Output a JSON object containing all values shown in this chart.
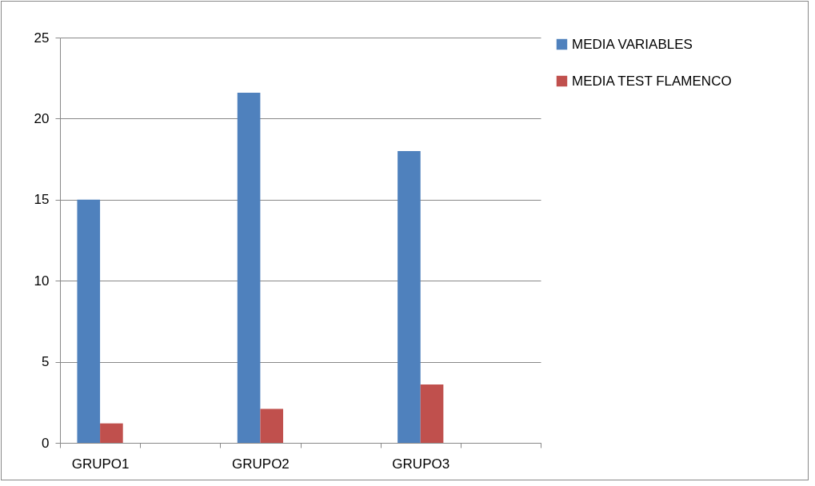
{
  "chart_data": {
    "type": "bar",
    "categories": [
      "GRUPO1",
      null,
      "GRUPO2",
      null,
      "GRUPO3",
      null
    ],
    "series": [
      {
        "name": "MEDIA VARIABLES",
        "color": "#4f81bd",
        "values": [
          15,
          null,
          21.6,
          null,
          18,
          null
        ]
      },
      {
        "name": "MEDIA TEST FLAMENCO",
        "color": "#c0504d",
        "values": [
          1.2,
          null,
          2.1,
          null,
          3.6,
          null
        ]
      }
    ],
    "ylim": [
      0,
      25
    ],
    "yticks": [
      0,
      5,
      10,
      15,
      20,
      25
    ],
    "grid": "y",
    "legend": "right"
  }
}
